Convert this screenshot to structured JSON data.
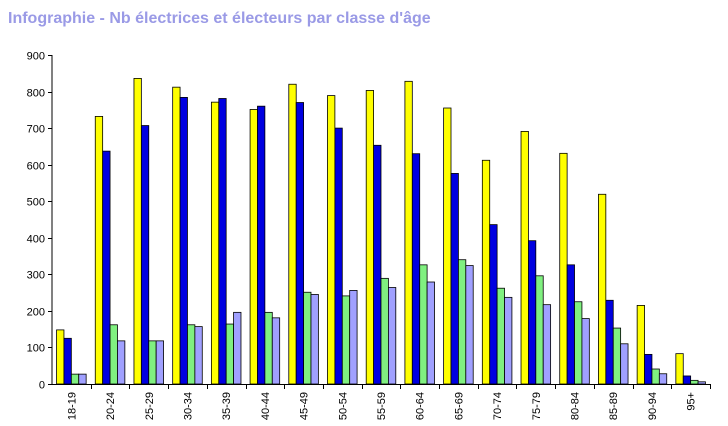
{
  "title": "Infographie - Nb électrices et électeurs par classe d'âge",
  "chart_data": {
    "type": "bar",
    "title": "Infographie - Nb électrices et électeurs par classe d'âge",
    "xlabel": "",
    "ylabel": "",
    "ylim": [
      0,
      900
    ],
    "yticks": [
      0,
      100,
      200,
      300,
      400,
      500,
      600,
      700,
      800,
      900
    ],
    "grid": false,
    "legend": "none",
    "categories": [
      "18-19",
      "20-24",
      "25-29",
      "30-34",
      "35-39",
      "40-44",
      "45-49",
      "50-54",
      "55-59",
      "60-64",
      "65-69",
      "70-74",
      "75-79",
      "80-84",
      "85-89",
      "90-94",
      "95+"
    ],
    "series": [
      {
        "color": "#ffff00",
        "values": [
          148,
          732,
          836,
          812,
          771,
          751,
          820,
          789,
          803,
          828,
          755,
          612,
          691,
          631,
          519,
          215,
          83
        ]
      },
      {
        "color": "#0000e0",
        "values": [
          125,
          637,
          707,
          784,
          781,
          760,
          770,
          700,
          653,
          630,
          576,
          436,
          392,
          326,
          229,
          81,
          22
        ]
      },
      {
        "color": "#80f080",
        "values": [
          27,
          162,
          118,
          162,
          164,
          196,
          251,
          241,
          289,
          326,
          340,
          262,
          296,
          225,
          153,
          41,
          10
        ]
      },
      {
        "color": "#a0a0ff",
        "values": [
          27,
          118,
          118,
          157,
          196,
          181,
          245,
          256,
          264,
          279,
          324,
          237,
          217,
          179,
          110,
          28,
          6
        ]
      }
    ]
  }
}
